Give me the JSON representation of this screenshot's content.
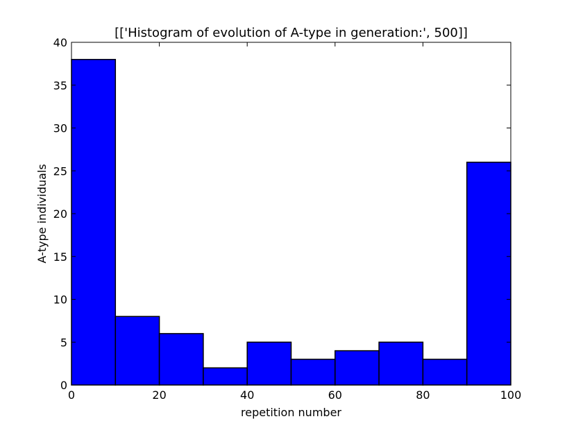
{
  "chart_data": {
    "type": "bar",
    "title": "[['Histogram of evolution of A-type in generation:', 500]]",
    "xlabel": "repetition number",
    "ylabel": "A-type individuals",
    "xlim": [
      0,
      100
    ],
    "ylim": [
      0,
      40
    ],
    "xticks": [
      "0",
      "20",
      "40",
      "60",
      "80",
      "100"
    ],
    "yticks": [
      "0",
      "5",
      "10",
      "15",
      "20",
      "25",
      "30",
      "35",
      "40"
    ],
    "bins": [
      {
        "x0": 0,
        "x1": 10,
        "value": 38
      },
      {
        "x0": 10,
        "x1": 20,
        "value": 8
      },
      {
        "x0": 20,
        "x1": 30,
        "value": 6
      },
      {
        "x0": 30,
        "x1": 40,
        "value": 2
      },
      {
        "x0": 40,
        "x1": 50,
        "value": 5
      },
      {
        "x0": 50,
        "x1": 60,
        "value": 3
      },
      {
        "x0": 60,
        "x1": 70,
        "value": 4
      },
      {
        "x0": 70,
        "x1": 80,
        "value": 5
      },
      {
        "x0": 80,
        "x1": 90,
        "value": 3
      },
      {
        "x0": 90,
        "x1": 100,
        "value": 26
      }
    ],
    "bar_color": "#0000ff",
    "edge_color": "#000000",
    "grid": false
  }
}
